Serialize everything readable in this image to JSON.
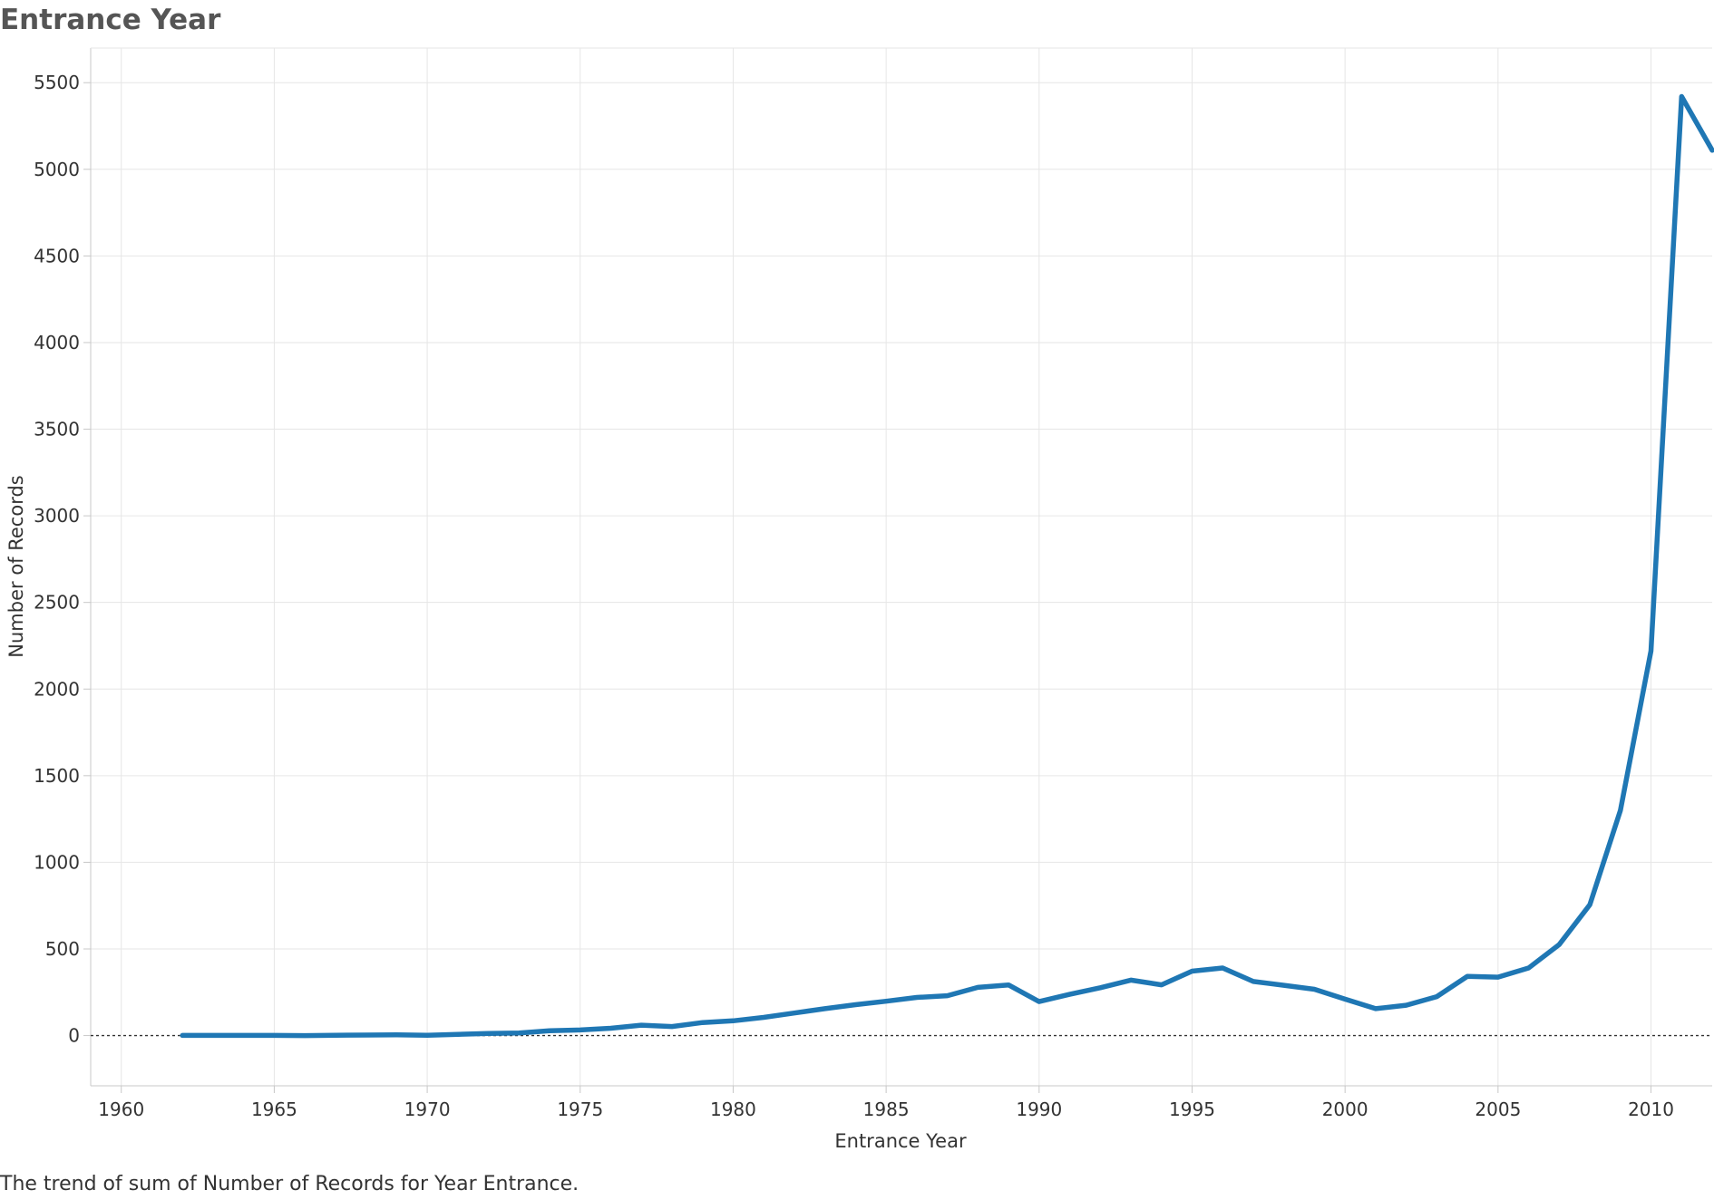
{
  "title": "Entrance Year",
  "caption": "The trend of sum of Number of Records for Year Entrance.",
  "chart_data": {
    "type": "line",
    "title": "Entrance Year",
    "xlabel": "Entrance Year",
    "ylabel": "Number of Records",
    "xlim": [
      1959,
      2012
    ],
    "ylim": [
      -290,
      5700
    ],
    "xticks": [
      1960,
      1965,
      1970,
      1975,
      1980,
      1985,
      1990,
      1995,
      2000,
      2005,
      2010
    ],
    "yticks": [
      0,
      500,
      1000,
      1500,
      2000,
      2500,
      3000,
      3500,
      4000,
      4500,
      5000,
      5500
    ],
    "grid": true,
    "zero_line": "dashed",
    "color": "#1f77b4",
    "series": [
      {
        "x": [
          1962,
          1963,
          1964,
          1965,
          1966,
          1967,
          1968,
          1969,
          1970,
          1971,
          1972,
          1973,
          1974,
          1975,
          1976,
          1977,
          1978,
          1979,
          1980,
          1981,
          1982,
          1983,
          1984,
          1985,
          1986,
          1987,
          1988,
          1989,
          1990,
          1991,
          1992,
          1993,
          1994,
          1995,
          1996,
          1997,
          1998,
          1999,
          2000,
          2001,
          2002,
          2003,
          2004,
          2005,
          2006,
          2007,
          2008,
          2009,
          2010,
          2011,
          2012
        ],
        "y": [
          1,
          1,
          1,
          1,
          0,
          2,
          3,
          4,
          2,
          7,
          12,
          15,
          28,
          32,
          42,
          60,
          52,
          75,
          85,
          105,
          130,
          155,
          178,
          198,
          220,
          230,
          278,
          292,
          196,
          238,
          276,
          320,
          293,
          372,
          390,
          312,
          290,
          267,
          210,
          155,
          175,
          225,
          342,
          337,
          390,
          525,
          755,
          1300,
          2220,
          5420,
          5110
        ]
      }
    ]
  }
}
